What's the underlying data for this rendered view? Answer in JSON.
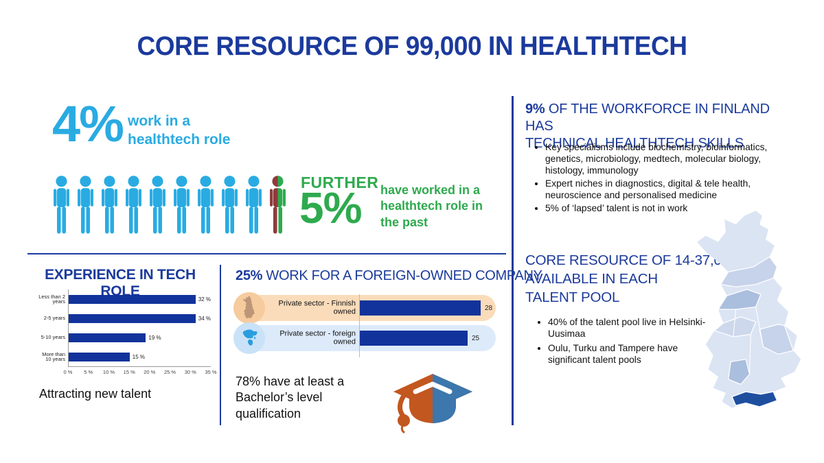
{
  "title": "CORE RESOURCE OF 99,000 IN HEALTHTECH",
  "colors": {
    "navy": "#1b3a9c",
    "light_blue": "#29abe2",
    "green": "#2eaa4e",
    "maroon": "#8e3b3b",
    "bar": "#12339b",
    "peach_pill": "#fadcba",
    "blue_pill": "#ddeafa",
    "peach_circle": "#f6cb9e",
    "blue_circle": "#c9e2f7",
    "cap_orange": "#c2571f",
    "cap_blue": "#3c77ad",
    "map_base": "#dbe4f3",
    "map_medium": "#aabede",
    "map_dark": "#1e4f9f"
  },
  "current_role": {
    "value": "4%",
    "caption_line1": "work in a",
    "caption_line2": "healthtech role"
  },
  "pictogram": {
    "figures_total": 10,
    "figures_blue": 9,
    "figures_split": 1
  },
  "past_role": {
    "prefix": "FURTHER",
    "value": "5%",
    "caption": "have worked in a healthtech role in the past"
  },
  "experience_section": {
    "heading": "EXPERIENCE IN TECH ROLE",
    "footer": "Attracting new talent"
  },
  "foreign_section": {
    "heading_bold": "25%",
    "heading_rest": " WORK FOR A FOREIGN-OWNED COMPANY",
    "note": "78% have at least a Bachelor’s level qualification"
  },
  "workforce_section": {
    "heading_bold": "9%",
    "heading_rest_line1": " OF THE WORKFORCE IN FINLAND HAS",
    "heading_line2": "TECHNICAL HEALTHTECH SKILLS",
    "bullets": [
      "Key specialisms include biochemistry, bioinformatics, genetics, microbiology, medtech, molecular biology, histology, immunology",
      "Expert niches in diagnostics, digital & tele health, neuroscience and personalised medicine",
      "5% of ‘lapsed’ talent is not in work"
    ]
  },
  "talent_pool_section": {
    "heading_line1": "CORE RESOURCE OF 14-37,000",
    "heading_line2": "AVAILABLE IN EACH",
    "heading_line3": "TALENT POOL",
    "bullets": [
      "40% of the talent pool live in Helsinki-Uusimaa",
      "Oulu, Turku and Tampere have significant talent pools"
    ]
  },
  "chart_data": [
    {
      "type": "bar",
      "orientation": "horizontal",
      "title": "EXPERIENCE IN TECH ROLE",
      "categories": [
        "Less than 2 years",
        "2-5 years",
        "5-10 years",
        "More than 10 years"
      ],
      "values": [
        32,
        34,
        19,
        15
      ],
      "value_labels": [
        "32 %",
        "34 %",
        "19 %",
        "15 %"
      ],
      "xlim": [
        0,
        35
      ],
      "x_ticks": [
        "0 %",
        "5 %",
        "10 %",
        "15 %",
        "20 %",
        "25 %",
        "30 %",
        "35 %"
      ],
      "bar_color": "#12339b",
      "grid": false,
      "legend": false
    },
    {
      "type": "bar",
      "orientation": "horizontal",
      "title": "25% WORK FOR A FOREIGN-OWNED COMPANY",
      "categories": [
        "Private sector - Finnish owned",
        "Private sector - foreign owned"
      ],
      "values": [
        28,
        25
      ],
      "value_labels": [
        "28",
        "25"
      ],
      "xlim": [
        0,
        30
      ],
      "bar_color": "#12339b",
      "grid": false,
      "legend": false
    }
  ]
}
